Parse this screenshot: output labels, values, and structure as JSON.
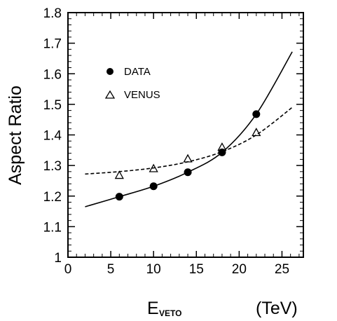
{
  "chart_data": {
    "type": "scatter",
    "xlabel_main": "E",
    "xlabel_sub": "VETO",
    "xlabel_unit": "(TeV)",
    "ylabel": "Aspect Ratio",
    "xlim": [
      0,
      27.5
    ],
    "ylim": [
      1.0,
      1.8
    ],
    "xticks": [
      0,
      5,
      10,
      15,
      20,
      25
    ],
    "yticks": [
      1,
      1.1,
      1.2,
      1.3,
      1.4,
      1.5,
      1.6,
      1.7,
      1.8
    ],
    "xtick_labels": [
      "0",
      "5",
      "10",
      "15",
      "20",
      "25"
    ],
    "ytick_labels": [
      "1",
      "1.1",
      "1.2",
      "1.3",
      "1.4",
      "1.5",
      "1.6",
      "1.7",
      "1.8"
    ],
    "legend_position": "upper-left",
    "series": [
      {
        "name": "DATA",
        "marker": "filled-circle",
        "line_style": "solid",
        "x": [
          6,
          10,
          14,
          18,
          22
        ],
        "y": [
          1.198,
          1.232,
          1.278,
          1.343,
          1.468
        ]
      },
      {
        "name": "VENUS",
        "marker": "open-triangle",
        "line_style": "dashed",
        "x": [
          6,
          10,
          14,
          18,
          22
        ],
        "y": [
          1.268,
          1.29,
          1.322,
          1.36,
          1.408
        ]
      }
    ],
    "fit_curves": [
      {
        "series": "DATA",
        "x": [
          2,
          6,
          10,
          14,
          18,
          22,
          26.2
        ],
        "y": [
          1.165,
          1.198,
          1.232,
          1.278,
          1.343,
          1.468,
          1.672
        ]
      },
      {
        "series": "VENUS",
        "x": [
          2,
          6,
          10,
          14,
          18,
          22,
          26.2
        ],
        "y": [
          1.272,
          1.28,
          1.292,
          1.312,
          1.345,
          1.4,
          1.49
        ]
      }
    ]
  }
}
